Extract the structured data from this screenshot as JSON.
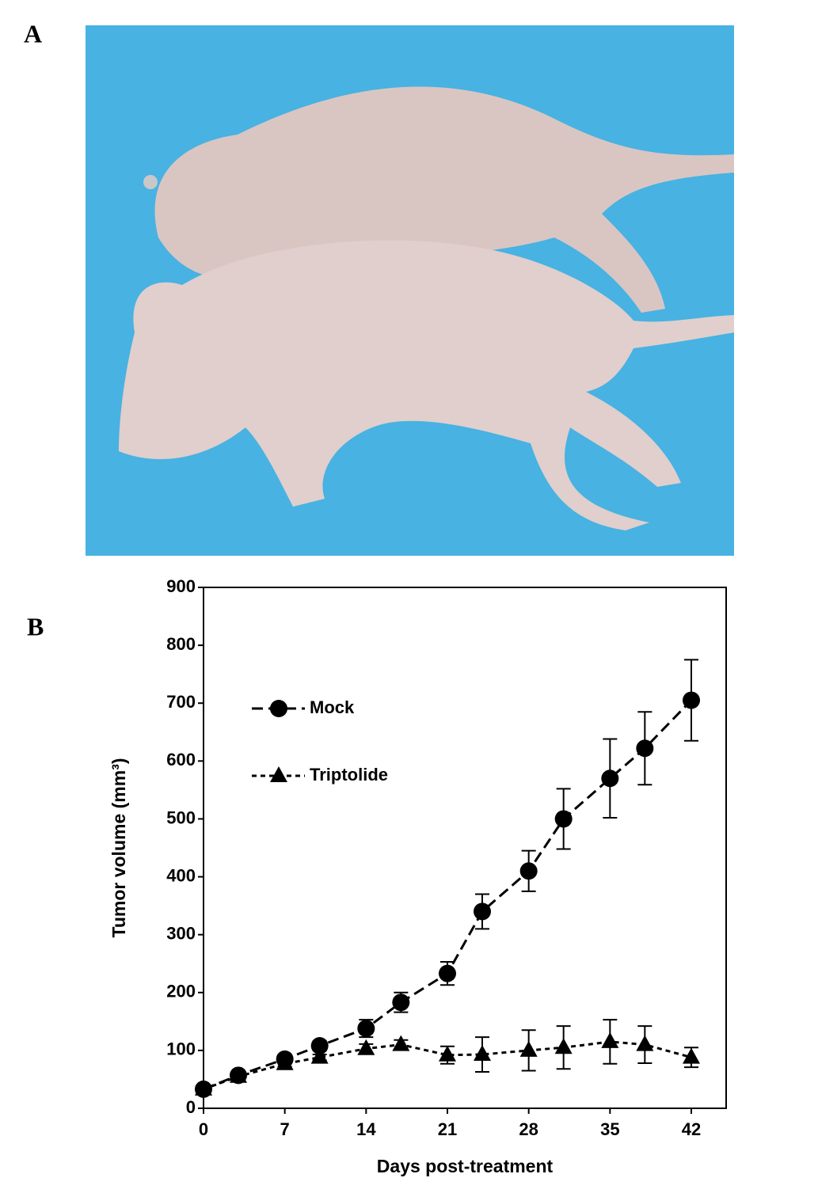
{
  "panel_labels": {
    "top": "A",
    "bottom": "B"
  },
  "chart_data": {
    "type": "line",
    "xlabel": "Days post-treatment",
    "ylabel": "Tumor volume (mm³)",
    "x": [
      0,
      3,
      7,
      10,
      14,
      17,
      21,
      24,
      28,
      31,
      35,
      38,
      42
    ],
    "xlim": [
      0,
      45
    ],
    "xticks": [
      0,
      7,
      14,
      21,
      28,
      35,
      42
    ],
    "ylim": [
      0,
      900
    ],
    "yticks": [
      0,
      100,
      200,
      300,
      400,
      500,
      600,
      700,
      800,
      900
    ],
    "series": [
      {
        "name": "Mock",
        "color": "#000000",
        "line_style": "dashed",
        "marker": "circle",
        "values": [
          33,
          57,
          85,
          108,
          138,
          183,
          233,
          340,
          410,
          500,
          570,
          622,
          705
        ],
        "errors": [
          0,
          5,
          8,
          8,
          15,
          17,
          20,
          30,
          35,
          52,
          68,
          63,
          70
        ]
      },
      {
        "name": "Triptolide",
        "color": "#000000",
        "line_style": "dotted",
        "marker": "triangle",
        "values": [
          33,
          55,
          77,
          88,
          103,
          110,
          92,
          93,
          100,
          105,
          115,
          110,
          88
        ],
        "errors": [
          0,
          5,
          5,
          5,
          8,
          8,
          15,
          30,
          35,
          37,
          38,
          32,
          17
        ]
      }
    ]
  }
}
